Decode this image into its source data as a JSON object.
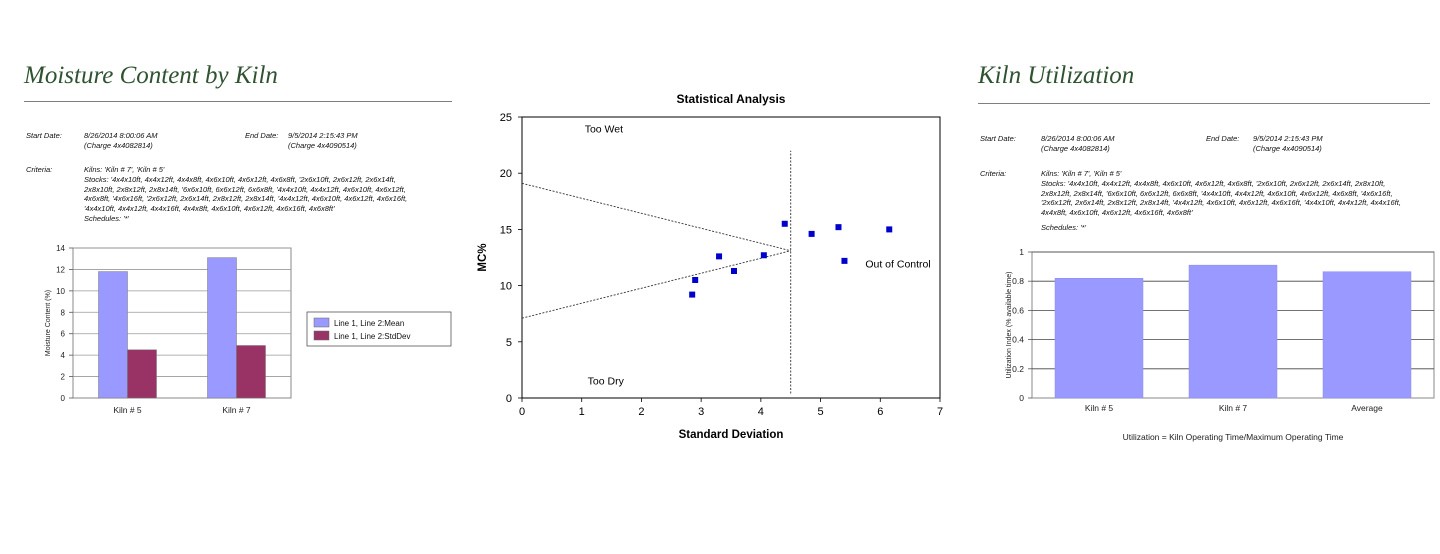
{
  "left_report": {
    "title": "Moisture Content by Kiln",
    "start_label": "Start Date:",
    "start_date": "8/26/2014 8:00:06 AM",
    "start_charge": "(Charge 4x4082814)",
    "end_label": "End Date:",
    "end_date": "9/5/2014 2:15:43 PM",
    "end_charge": "(Charge 4x4090514)",
    "criteria_label": "Criteria:",
    "criteria_kilns": "Kilns: 'Kiln # 7', 'Kiln # 5'",
    "criteria_stocks": "Stocks: '4x4x10ft, 4x4x12ft, 4x4x8ft, 4x6x10ft, 4x6x12ft, 4x6x8ft, '2x6x10ft, 2x6x12ft, 2x6x14ft, 2x8x10ft, 2x8x12ft, 2x8x14ft, '6x6x10ft, 6x6x12ft, 6x6x8ft, '4x4x10ft, 4x4x12ft, 4x6x10ft, 4x6x12ft, 4x6x8ft, '4x6x16ft, '2x6x12ft, 2x6x14ft, 2x8x12ft, 2x8x14ft, '4x4x12ft, 4x6x10ft, 4x6x12ft, 4x6x16ft, '4x4x10ft, 4x4x12ft, 4x4x16ft, 4x4x8ft, 4x6x10ft, 4x6x12ft, 4x6x16ft, 4x6x8ft'",
    "criteria_schedules": "Schedules: '*'"
  },
  "right_report": {
    "title": "Kiln Utilization",
    "start_label": "Start Date:",
    "start_date": "8/26/2014 8:00:06 AM",
    "start_charge": "(Charge 4x4082814)",
    "end_label": "End Date:",
    "end_date": "9/5/2014 2:15:43 PM",
    "end_charge": "(Charge 4x4090514)",
    "criteria_label": "Criteria:",
    "criteria_kilns": "Kilns: 'Kiln # 7', 'Kiln # 5'",
    "criteria_stocks": "Stocks: '4x4x10ft, 4x4x12ft, 4x4x8ft, 4x6x10ft, 4x6x12ft, 4x6x8ft, '2x6x10ft, 2x6x12ft, 2x6x14ft, 2x8x10ft, 2x8x12ft, 2x8x14ft, '6x6x10ft, 6x6x12ft, 6x6x8ft, '4x4x10ft, 4x4x12ft, 4x6x10ft, 4x6x12ft, 4x6x8ft, '4x6x16ft, '2x6x12ft, 2x6x14ft, 2x8x12ft, 2x8x14ft, '4x4x12ft, 4x6x10ft, 4x6x12ft, 4x6x16ft, '4x4x10ft, 4x4x12ft, 4x4x16ft, 4x4x8ft, 4x6x10ft, 4x6x12ft, 4x6x16ft, 4x6x8ft'",
    "criteria_schedules": "Schedules: '*'"
  },
  "colors": {
    "title_green": "#2f5331",
    "mean_bar": "#9999ff",
    "stddev_bar": "#993366",
    "util_bar": "#9999ff",
    "scatter_point": "#0000cc",
    "rule": "#7f7f7f"
  },
  "chart_data": [
    {
      "type": "bar",
      "title": "",
      "xlabel": "",
      "ylabel": "Moisture Content (%)",
      "categories": [
        "Kiln # 5",
        "Kiln # 7"
      ],
      "series": [
        {
          "name": "Line 1, Line 2:Mean",
          "values": [
            11.8,
            13.1
          ]
        },
        {
          "name": "Line 1, Line 2:StdDev",
          "values": [
            4.5,
            4.9
          ]
        }
      ],
      "ylim": [
        0,
        14
      ],
      "yticks": [
        0,
        2,
        4,
        6,
        8,
        10,
        12,
        14
      ],
      "grid": true,
      "legend": "right"
    },
    {
      "type": "scatter",
      "title": "Statistical Analysis",
      "xlabel": "Standard Deviation",
      "ylabel": "MC%",
      "xlim": [
        0,
        7
      ],
      "ylim": [
        0,
        25
      ],
      "xticks": [
        0,
        1,
        2,
        3,
        4,
        5,
        6,
        7
      ],
      "yticks": [
        0,
        5,
        10,
        15,
        20,
        25
      ],
      "points": [
        {
          "x": 2.85,
          "y": 9.2
        },
        {
          "x": 2.9,
          "y": 10.5
        },
        {
          "x": 3.3,
          "y": 12.6
        },
        {
          "x": 3.55,
          "y": 11.3
        },
        {
          "x": 4.05,
          "y": 12.7
        },
        {
          "x": 4.4,
          "y": 15.5
        },
        {
          "x": 4.85,
          "y": 14.6
        },
        {
          "x": 5.3,
          "y": 15.2
        },
        {
          "x": 5.4,
          "y": 12.2
        },
        {
          "x": 6.15,
          "y": 15.0
        }
      ],
      "control_lines": [
        {
          "from": [
            0,
            19.1
          ],
          "to": [
            4.5,
            13.1
          ]
        },
        {
          "from": [
            0,
            7.1
          ],
          "to": [
            4.5,
            13.1
          ]
        },
        {
          "from": [
            4.5,
            0.4
          ],
          "to": [
            4.5,
            22.0
          ]
        }
      ],
      "annotations": [
        {
          "text": "Too Wet",
          "x": 1.05,
          "y": 23.6
        },
        {
          "text": "Too Dry",
          "x": 1.1,
          "y": 1.2
        },
        {
          "text": "Out of Control",
          "x": 5.75,
          "y": 11.6
        }
      ],
      "grid": false
    },
    {
      "type": "bar",
      "title": "",
      "xlabel": "Utilization = Kiln Operating Time/Maximum Operating Time",
      "ylabel": "Utilization Index (% available time)",
      "categories": [
        "Kiln # 5",
        "Kiln # 7",
        "Average"
      ],
      "values": [
        0.82,
        0.91,
        0.865
      ],
      "ylim": [
        0,
        1
      ],
      "yticks": [
        0,
        0.2,
        0.4,
        0.6,
        0.8,
        1
      ],
      "grid": true
    }
  ]
}
